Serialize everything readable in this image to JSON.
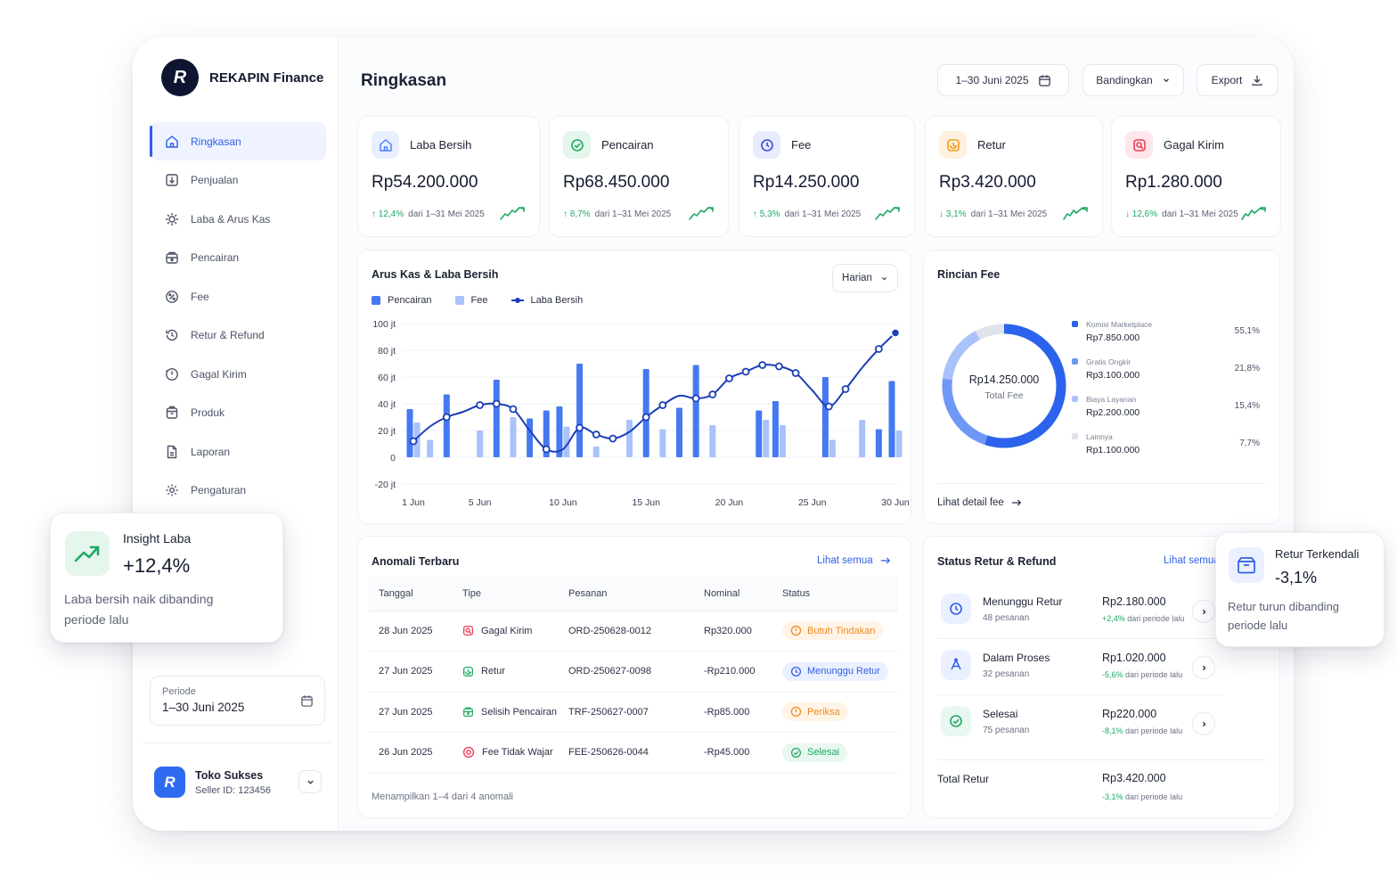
{
  "brand": {
    "logo_letter": "R",
    "name": "REKAPIN Finance"
  },
  "sidebar": {
    "items": [
      {
        "label": "Ringkasan",
        "icon": "home-icon",
        "active": true
      },
      {
        "label": "Penjualan",
        "icon": "download-box-icon"
      },
      {
        "label": "Laba & Arus Kas",
        "icon": "cashflow-icon"
      },
      {
        "label": "Pencairan",
        "icon": "wallet-icon"
      },
      {
        "label": "Fee",
        "icon": "percent-icon"
      },
      {
        "label": "Retur & Refund",
        "icon": "history-icon"
      },
      {
        "label": "Gagal Kirim",
        "icon": "alert-clock-icon"
      },
      {
        "label": "Produk",
        "icon": "box-icon"
      },
      {
        "label": "Laporan",
        "icon": "document-icon"
      },
      {
        "label": "Pengaturan",
        "icon": "gear-icon"
      }
    ],
    "period": {
      "label": "Periode",
      "value": "1–30 Juni 2025"
    },
    "store": {
      "avatar_letter": "R",
      "name": "Toko Sukses",
      "seller_id": "Seller ID: 123456"
    }
  },
  "header": {
    "title": "Ringkasan",
    "date_range": "1–30 Juni 2025",
    "compare": "Bandingkan",
    "export": "Export"
  },
  "kpis": [
    {
      "label": "Laba Bersih",
      "value": "Rp54.200.000",
      "delta": "↑ 12,4%",
      "from": "dari 1–31 Mei 2025",
      "color": "#4a7cf6",
      "bg": "#e8efff",
      "icon": "home-icon"
    },
    {
      "label": "Pencairan",
      "value": "Rp68.450.000",
      "delta": "↑ 8,7%",
      "from": "dari 1–31 Mei 2025",
      "color": "#1fa864",
      "bg": "#e5f6ec",
      "icon": "check-circle-icon"
    },
    {
      "label": "Fee",
      "value": "Rp14.250.000",
      "delta": "↑ 5,3%",
      "from": "dari 1–31 Mei 2025",
      "color": "#3b4fd8",
      "bg": "#e9ebff",
      "icon": "clock-icon"
    },
    {
      "label": "Retur",
      "value": "Rp3.420.000",
      "delta": "↓ 3,1%",
      "from": "dari 1–31 Mei 2025",
      "color": "#f39b22",
      "bg": "#fff1dd",
      "icon": "return-icon"
    },
    {
      "label": "Gagal Kirim",
      "value": "Rp1.280.000",
      "delta": "↓ 12,6%",
      "from": "dari 1–31 Mei 2025",
      "color": "#ea3f5a",
      "bg": "#ffe6ea",
      "icon": "failed-delivery-icon"
    }
  ],
  "cashflow": {
    "title": "Arus Kas & Laba Bersih",
    "period_select": "Harian",
    "legend": [
      "Pencairan",
      "Fee",
      "Laba Bersih"
    ]
  },
  "chart_data": {
    "type": "bar",
    "xlabel": "",
    "ylabel": "",
    "ylim": [
      -20,
      100
    ],
    "y_ticks": [
      "100 jt",
      "80 jt",
      "60 jt",
      "40 jt",
      "20 jt",
      "0",
      "-20 jt"
    ],
    "x_tick_labels": [
      "1 Jun",
      "5 Jun",
      "10 Jun",
      "15 Jun",
      "20 Jun",
      "25 Jun",
      "30 Jun"
    ],
    "x_tick_days": [
      1,
      5,
      10,
      15,
      20,
      25,
      30
    ],
    "legend_position": "top-left",
    "grid": true,
    "days": [
      1,
      2,
      3,
      4,
      5,
      6,
      7,
      8,
      9,
      10,
      11,
      12,
      13,
      14,
      15,
      16,
      17,
      18,
      19,
      20,
      21,
      22,
      23,
      24,
      25,
      26,
      27,
      28,
      29,
      30
    ],
    "series": [
      {
        "name": "Pencairan",
        "color": "#4579f2",
        "type": "bar",
        "values": [
          36,
          0,
          47,
          0,
          0,
          58,
          0,
          29,
          35,
          38,
          70,
          0,
          0,
          0,
          66,
          0,
          37,
          69,
          0,
          0,
          0,
          35,
          42,
          0,
          0,
          60,
          0,
          0,
          21,
          57
        ]
      },
      {
        "name": "Fee",
        "color": "#a9c2fb",
        "type": "bar",
        "values": [
          26,
          13,
          0,
          0,
          20,
          0,
          30,
          0,
          0,
          23,
          0,
          8,
          0,
          28,
          0,
          21,
          0,
          0,
          24,
          0,
          0,
          28,
          24,
          0,
          0,
          13,
          0,
          28,
          0,
          20
        ]
      },
      {
        "name": "Laba Bersih",
        "color": "#1c3fb5",
        "type": "line",
        "values": [
          12,
          23,
          30,
          34,
          39,
          40,
          36,
          20,
          6,
          6,
          22,
          17,
          14,
          19,
          30,
          39,
          46,
          44,
          47,
          59,
          64,
          69,
          68,
          63,
          50,
          38,
          51,
          67,
          81,
          93
        ]
      }
    ]
  },
  "fee": {
    "title": "Rincian Fee",
    "total": "Rp14.250.000",
    "total_label": "Total Fee",
    "detail_link": "Lihat detail fee",
    "items": [
      {
        "label": "Komisi Marketplace",
        "amount": "Rp7.850.000",
        "pct": "55,1%",
        "value": 55.1,
        "color": "#2c63ec"
      },
      {
        "label": "Gratis Ongkir",
        "amount": "Rp3.100.000",
        "pct": "21,8%",
        "value": 21.8,
        "color": "#6f98f6"
      },
      {
        "label": "Biaya Layanan",
        "amount": "Rp2.200.000",
        "pct": "15,4%",
        "value": 15.4,
        "color": "#a9c2fb"
      },
      {
        "label": "Lainnya",
        "amount": "Rp1.100.000",
        "pct": "7,7%",
        "value": 7.7,
        "color": "#dfe3ec"
      }
    ]
  },
  "anomali": {
    "title": "Anomali Terbaru",
    "see_all": "Lihat semua",
    "columns": [
      "Tanggal",
      "Tipe",
      "Pesanan",
      "Nominal",
      "Status"
    ],
    "rows": [
      {
        "date": "28 Jun 2025",
        "type": "Gagal Kirim",
        "type_icon": "failed-delivery-icon",
        "type_color": "#ea3f5a",
        "order": "ORD-250628-0012",
        "amount": "Rp320.000",
        "status": "Butuh Tindakan",
        "status_icon": "alert-icon",
        "status_color": "#f08a1c",
        "status_bg": "#fff4e6"
      },
      {
        "date": "27 Jun 2025",
        "type": "Retur",
        "type_icon": "return-icon",
        "type_color": "#1fa864",
        "order": "ORD-250627-0098",
        "amount": "-Rp210.000",
        "status": "Menunggu Retur",
        "status_icon": "clock-icon",
        "status_color": "#2f5fe6",
        "status_bg": "#eaf0ff"
      },
      {
        "date": "27 Jun 2025",
        "type": "Selisih Pencairan",
        "type_icon": "wallet-icon",
        "type_color": "#1fa864",
        "order": "TRF-250627-0007",
        "amount": "-Rp85.000",
        "status": "Periksa",
        "status_icon": "alert-icon",
        "status_color": "#f08a1c",
        "status_bg": "#fff4e6"
      },
      {
        "date": "26 Jun 2025",
        "type": "Fee Tidak Wajar",
        "type_icon": "target-icon",
        "type_color": "#ea3f5a",
        "order": "FEE-250626-0044",
        "amount": "-Rp45.000",
        "status": "Selesai",
        "status_icon": "check-circle-icon",
        "status_color": "#1fa864",
        "status_bg": "#e8f7ef"
      }
    ],
    "footer": "Menampilkan 1–4 dari 4 anomali"
  },
  "status_retur": {
    "title": "Status Retur & Refund",
    "see_all": "Lihat semua",
    "rows": [
      {
        "name": "Menunggu Retur",
        "sub": "48 pesanan",
        "amount": "Rp2.180.000",
        "delta": "+2,4%",
        "from": "dari periode lalu",
        "delta_color": "#1fa864",
        "icon": "clock-icon",
        "color": "#2f5fe6",
        "bg": "#eaf0ff"
      },
      {
        "name": "Dalam Proses",
        "sub": "32 pesanan",
        "amount": "Rp1.020.000",
        "delta": "-5,6%",
        "from": "dari periode lalu",
        "delta_color": "#1fa864",
        "icon": "process-icon",
        "color": "#2f5fe6",
        "bg": "#eaf0ff"
      },
      {
        "name": "Selesai",
        "sub": "75 pesanan",
        "amount": "Rp220.000",
        "delta": "-8,1%",
        "from": "dari periode lalu",
        "delta_color": "#1fa864",
        "icon": "check-circle-icon",
        "color": "#1fa864",
        "bg": "#e8f7ef"
      }
    ],
    "total_label": "Total Retur",
    "total_amount": "Rp3.420.000",
    "total_delta": "-3,1%",
    "total_from": "dari periode lalu"
  },
  "insight": {
    "title": "Insight Laba",
    "value": "+12,4%",
    "desc": "Laba bersih naik dibanding periode lalu"
  },
  "retur_card": {
    "title": "Retur Terkendali",
    "value": "-3,1%",
    "desc": "Retur turun dibanding periode lalu"
  }
}
